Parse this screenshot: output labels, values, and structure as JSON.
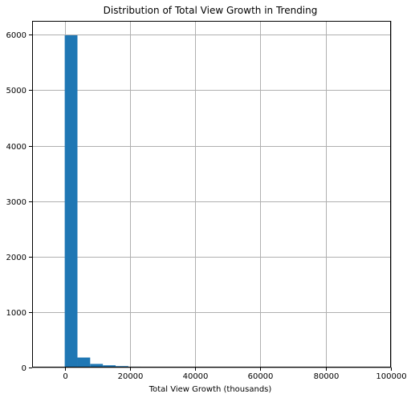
{
  "chart_data": {
    "type": "bar",
    "title": "Distribution of Total View Growth in Trending",
    "xlabel": "Total View Growth (thousands)",
    "ylabel": "",
    "xlim": [
      -10000,
      100000
    ],
    "ylim": [
      0,
      6250
    ],
    "grid": true,
    "bar_color": "#1f77b4",
    "bin_edges": [
      0,
      3900,
      7800,
      11700,
      15600,
      19500,
      23400,
      27300,
      31200,
      35100,
      39000
    ],
    "counts": [
      5990,
      180,
      65,
      40,
      25,
      15,
      10,
      8,
      5,
      4
    ],
    "x_ticks": [
      0,
      20000,
      40000,
      60000,
      80000,
      100000
    ],
    "x_tick_labels": [
      "0",
      "20000",
      "40000",
      "60000",
      "80000",
      "100000"
    ],
    "y_ticks": [
      0,
      1000,
      2000,
      3000,
      4000,
      5000,
      6000
    ],
    "y_tick_labels": [
      "0",
      "1000",
      "2000",
      "3000",
      "4000",
      "5000",
      "6000"
    ]
  }
}
